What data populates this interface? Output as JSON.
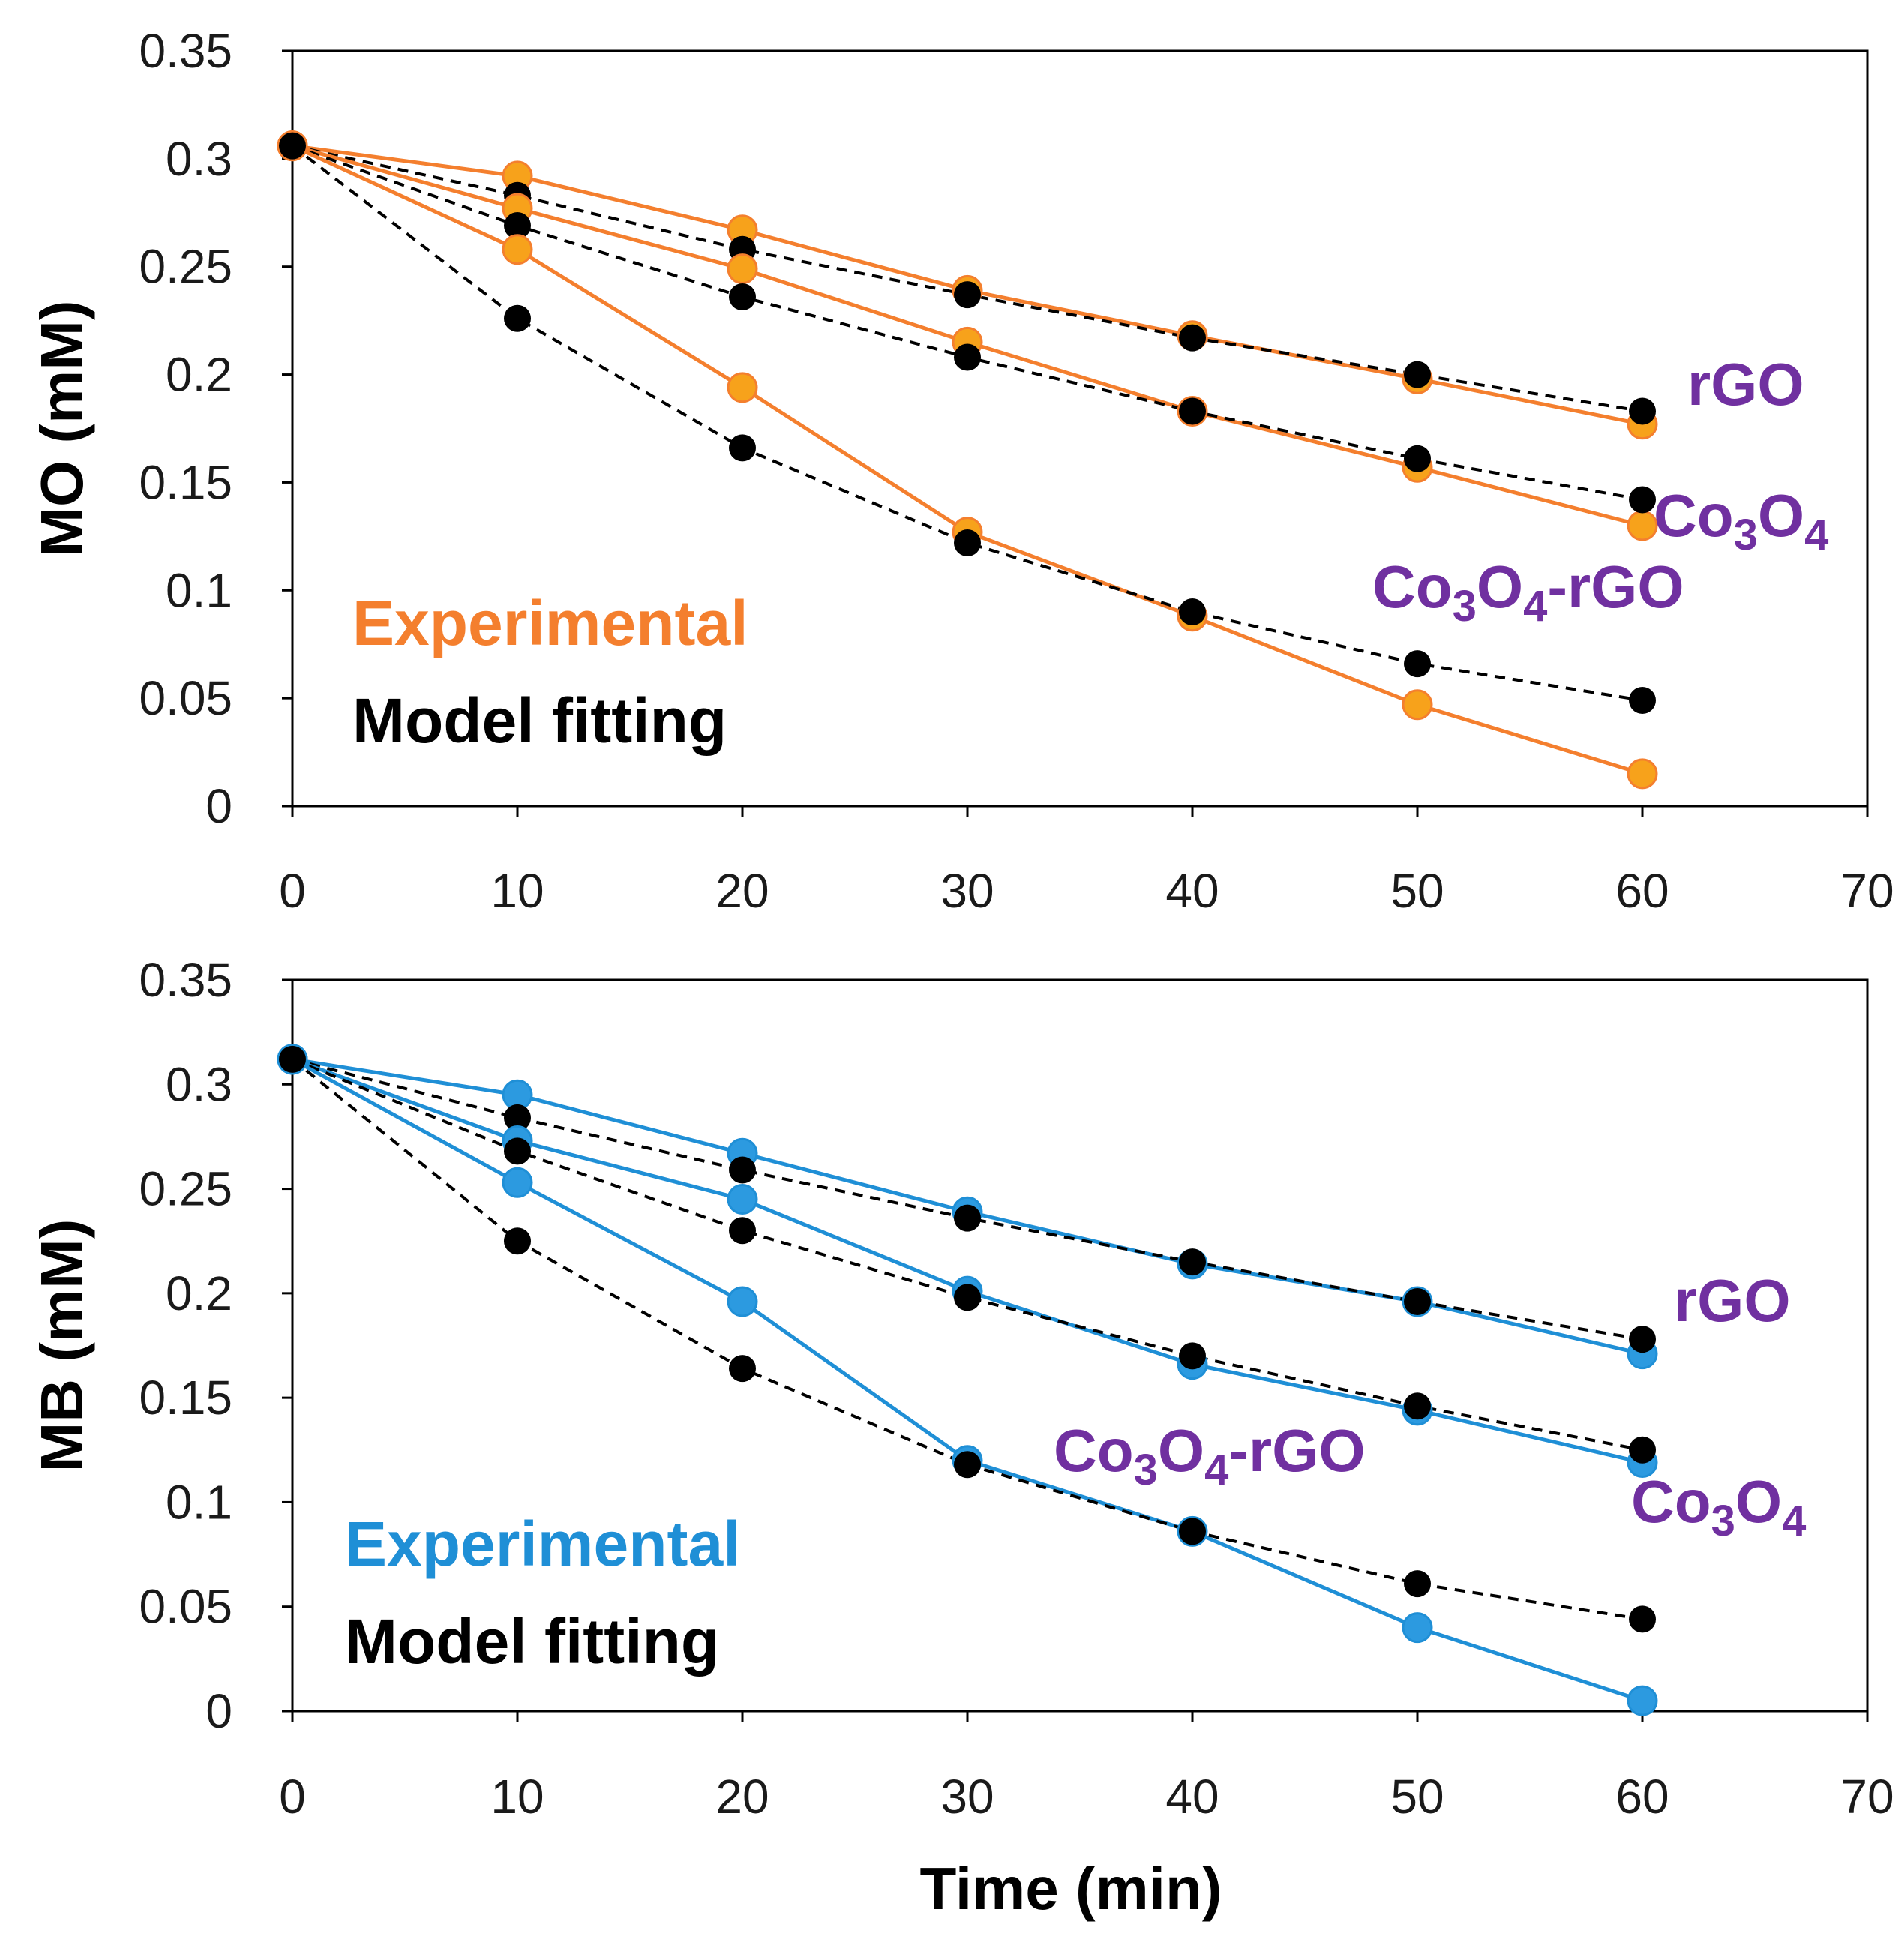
{
  "chart_data": [
    {
      "type": "line",
      "ylabel": "MO (mM)",
      "xlabel": "",
      "xlim": [
        0,
        70
      ],
      "ylim": [
        0,
        0.35
      ],
      "x_ticks": [
        "0",
        "10",
        "20",
        "30",
        "40",
        "50",
        "60",
        "70"
      ],
      "y_ticks": [
        "0",
        "0.05",
        "0.1",
        "0.15",
        "0.2",
        "0.25",
        "0.3",
        "0.35"
      ],
      "x": [
        0,
        10,
        20,
        30,
        40,
        50,
        60
      ],
      "colors": {
        "experimental": "#f47f2e",
        "experimental_marker": "#f7a21b",
        "model": "#000000",
        "label": "#7030a0"
      },
      "legend": {
        "experimental": "Experimental",
        "model": "Model fitting"
      },
      "series": [
        {
          "name": "rGO",
          "name_main": "rGO",
          "experimental": [
            0.306,
            0.292,
            0.267,
            0.239,
            0.218,
            0.198,
            0.177
          ],
          "model": [
            0.306,
            0.283,
            0.258,
            0.237,
            0.217,
            0.2,
            0.183
          ]
        },
        {
          "name": "Co3O4",
          "name_main": "Co",
          "name_sub1": "3",
          "name_mid": "O",
          "name_sub2": "4",
          "name_tail": "",
          "experimental": [
            0.306,
            0.277,
            0.249,
            0.215,
            0.183,
            0.157,
            0.13
          ],
          "model": [
            0.306,
            0.269,
            0.236,
            0.208,
            0.183,
            0.161,
            0.142
          ]
        },
        {
          "name": "Co3O4-rGO",
          "name_main": "Co",
          "name_sub1": "3",
          "name_mid": "O",
          "name_sub2": "4",
          "name_tail": "-rGO",
          "experimental": [
            0.306,
            0.258,
            0.194,
            0.127,
            0.088,
            0.047,
            0.015
          ],
          "model": [
            0.306,
            0.226,
            0.166,
            0.122,
            0.09,
            0.066,
            0.049
          ]
        }
      ]
    },
    {
      "type": "line",
      "ylabel": "MB (mM)",
      "xlabel": "Time (min)",
      "xlim": [
        0,
        70
      ],
      "ylim": [
        0,
        0.35
      ],
      "x_ticks": [
        "0",
        "10",
        "20",
        "30",
        "40",
        "50",
        "60",
        "70"
      ],
      "y_ticks": [
        "0",
        "0.05",
        "0.1",
        "0.15",
        "0.2",
        "0.25",
        "0.3",
        "0.35"
      ],
      "x": [
        0,
        10,
        20,
        30,
        40,
        50,
        60
      ],
      "colors": {
        "experimental": "#1f8fd6",
        "experimental_marker": "#2c9ae0",
        "model": "#000000",
        "label": "#7030a0"
      },
      "legend": {
        "experimental": "Experimental",
        "model": "Model fitting"
      },
      "series": [
        {
          "name": "rGO",
          "name_main": "rGO",
          "experimental": [
            0.312,
            0.295,
            0.267,
            0.239,
            0.214,
            0.196,
            0.171
          ],
          "model": [
            0.312,
            0.284,
            0.259,
            0.236,
            0.215,
            0.196,
            0.178
          ]
        },
        {
          "name": "Co3O4",
          "name_main": "Co",
          "name_sub1": "3",
          "name_mid": "O",
          "name_sub2": "4",
          "name_tail": "",
          "experimental": [
            0.312,
            0.273,
            0.245,
            0.201,
            0.166,
            0.144,
            0.119
          ],
          "model": [
            0.312,
            0.268,
            0.23,
            0.198,
            0.17,
            0.146,
            0.125
          ]
        },
        {
          "name": "Co3O4-rGO",
          "name_main": "Co",
          "name_sub1": "3",
          "name_mid": "O",
          "name_sub2": "4",
          "name_tail": "-rGO",
          "experimental": [
            0.312,
            0.253,
            0.196,
            0.12,
            0.086,
            0.04,
            0.005
          ],
          "model": [
            0.312,
            0.225,
            0.164,
            0.118,
            0.086,
            0.061,
            0.044
          ]
        }
      ]
    }
  ]
}
